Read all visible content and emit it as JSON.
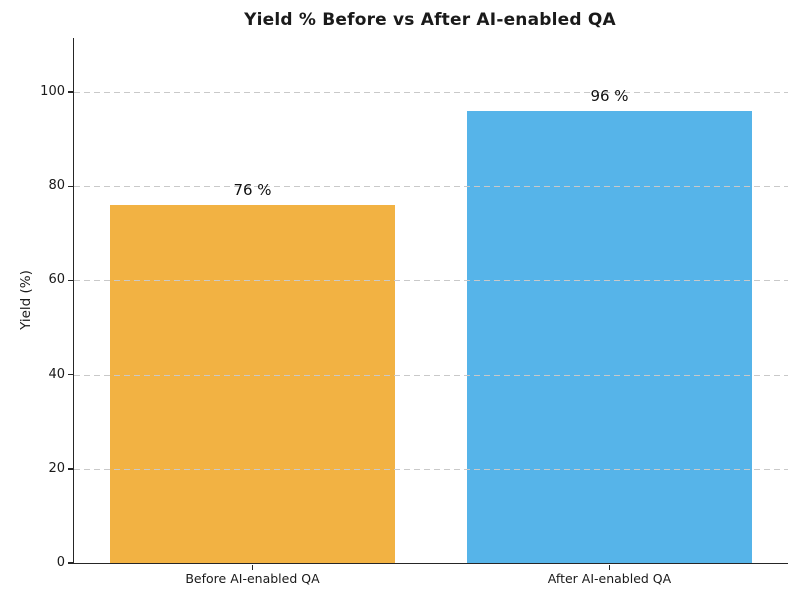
{
  "figure": {
    "background": "#ffffff"
  },
  "chart_data": {
    "type": "bar",
    "title": "Yield % Before vs After AI-enabled QA",
    "xlabel": "",
    "ylabel": "Yield (%)",
    "categories": [
      "Before AI-enabled QA",
      "After AI-enabled QA"
    ],
    "values": [
      76,
      96
    ],
    "bar_labels": [
      "76 %",
      "96 %"
    ],
    "bar_colors": [
      "#F2B243",
      "#56B4E9"
    ],
    "yticks": [
      0,
      20,
      40,
      60,
      80,
      100
    ],
    "ylim": [
      0,
      111.5
    ],
    "bar_width_fraction": 0.8,
    "grid": {
      "axis": "y",
      "style": "dashed",
      "color": "#c9c9c9",
      "drawn_above_bars": true
    },
    "legend_position": "none"
  }
}
